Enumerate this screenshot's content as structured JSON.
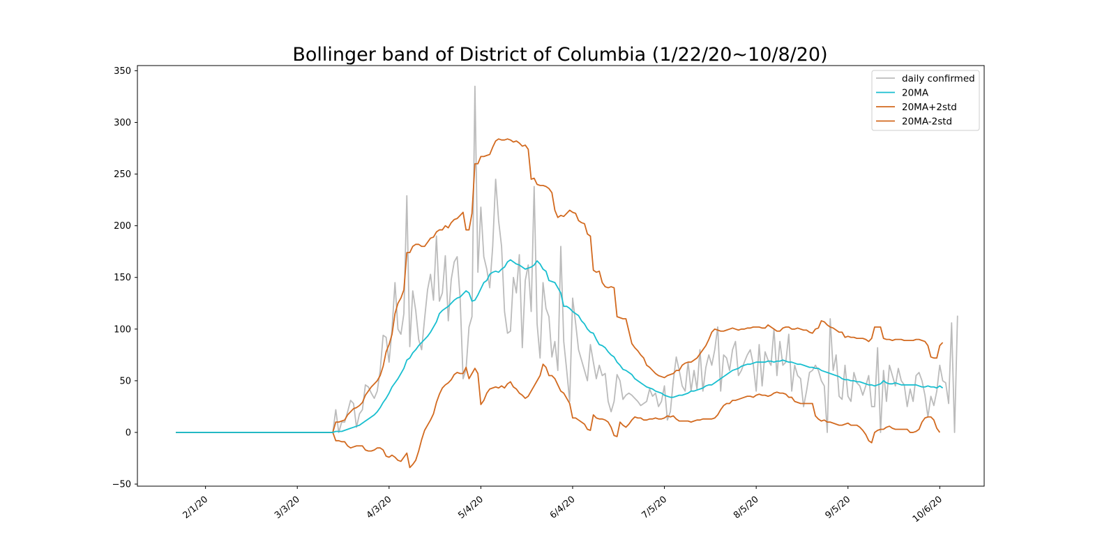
{
  "chart_data": {
    "type": "line",
    "title": "Bollinger band of District of Columbia (1/22/20~10/8/20)",
    "xlabel": "",
    "ylabel": "",
    "x_start_date": "2020-01-22",
    "xlim": [
      "2020-01-09",
      "2020-10-21"
    ],
    "ylim": [
      -52,
      355
    ],
    "x_tick_labels": [
      "2/1/20",
      "3/3/20",
      "4/3/20",
      "5/4/20",
      "6/4/20",
      "7/5/20",
      "8/5/20",
      "9/5/20",
      "10/6/20"
    ],
    "x_tick_dates": [
      "2020-02-01",
      "2020-03-03",
      "2020-04-03",
      "2020-05-04",
      "2020-06-04",
      "2020-07-05",
      "2020-08-05",
      "2020-09-05",
      "2020-10-06"
    ],
    "y_ticks": [
      -50,
      0,
      50,
      100,
      150,
      200,
      250,
      300,
      350
    ],
    "legend_position": "upper right",
    "grid": false,
    "series": [
      {
        "name": "daily confirmed",
        "color": "#bbbbbb",
        "values": [
          0,
          0,
          0,
          0,
          0,
          0,
          0,
          0,
          0,
          0,
          0,
          0,
          0,
          0,
          0,
          0,
          0,
          0,
          0,
          0,
          0,
          0,
          0,
          0,
          0,
          0,
          0,
          0,
          0,
          0,
          0,
          0,
          0,
          0,
          0,
          0,
          0,
          0,
          0,
          0,
          0,
          0,
          0,
          0,
          0,
          0,
          0,
          0,
          0,
          0,
          0,
          0,
          0,
          0,
          22,
          0,
          10,
          10,
          20,
          31,
          28,
          5,
          18,
          22,
          46,
          44,
          38,
          33,
          40,
          60,
          94,
          92,
          68,
          100,
          145,
          100,
          95,
          115,
          229,
          83,
          137,
          118,
          90,
          80,
          110,
          138,
          153,
          128,
          190,
          127,
          135,
          171,
          108,
          148,
          165,
          170,
          130,
          52,
          61,
          102,
          112,
          335,
          155,
          218,
          170,
          158,
          140,
          180,
          245,
          205,
          180,
          117,
          96,
          98,
          150,
          135,
          172,
          82,
          147,
          162,
          117,
          238,
          105,
          72,
          145,
          120,
          112,
          73,
          88,
          60,
          180,
          88,
          60,
          30,
          130,
          106,
          80,
          70,
          60,
          50,
          85,
          68,
          52,
          65,
          55,
          57,
          30,
          20,
          30,
          56,
          50,
          32,
          36,
          38,
          36,
          33,
          30,
          26,
          28,
          30,
          42,
          35,
          38,
          25,
          30,
          45,
          12,
          20,
          50,
          73,
          60,
          45,
          40,
          68,
          40,
          60,
          42,
          80,
          40,
          63,
          75,
          65,
          80,
          102,
          40,
          75,
          72,
          60,
          80,
          88,
          55,
          60,
          68,
          75,
          80,
          66,
          40,
          85,
          45,
          78,
          70,
          65,
          100,
          55,
          88,
          65,
          68,
          95,
          40,
          65,
          55,
          52,
          25,
          40,
          58,
          60,
          65,
          60,
          50,
          45,
          0,
          110,
          60,
          75,
          35,
          32,
          65,
          35,
          30,
          58,
          48,
          45,
          36,
          45,
          55,
          25,
          25,
          82,
          0,
          60,
          30,
          65,
          55,
          45,
          62,
          50,
          46,
          25,
          42,
          30,
          55,
          58,
          50,
          36,
          15,
          35,
          26,
          40,
          65,
          50,
          48,
          28,
          106,
          0,
          113
        ]
      },
      {
        "name": "20MA",
        "color": "#17becf",
        "values": [
          0,
          0,
          0,
          0,
          0,
          0,
          0,
          0,
          0,
          0,
          0,
          0,
          0,
          0,
          0,
          0,
          0,
          0,
          0,
          0,
          0,
          0,
          0,
          0,
          0,
          0,
          0,
          0,
          0,
          0,
          0,
          0,
          0,
          0,
          0,
          0,
          0,
          0,
          0,
          0,
          0,
          0,
          0,
          0,
          0,
          0,
          0,
          0,
          0,
          0,
          0,
          0,
          0,
          0,
          1,
          1,
          1,
          2,
          3,
          4,
          5,
          6,
          7,
          9,
          11,
          13,
          15,
          17,
          20,
          24,
          29,
          33,
          38,
          44,
          48,
          52,
          57,
          62,
          70,
          72,
          77,
          80,
          84,
          87,
          90,
          93,
          97,
          102,
          107,
          115,
          118,
          120,
          122,
          125,
          128,
          130,
          131,
          134,
          137,
          135,
          127,
          128,
          133,
          139,
          145,
          147,
          153,
          155,
          156,
          155,
          158,
          160,
          165,
          167,
          165,
          163,
          162,
          160,
          158,
          159,
          160,
          162,
          166,
          163,
          158,
          156,
          147,
          146,
          145,
          140,
          135,
          122,
          122,
          120,
          117,
          115,
          113,
          108,
          105,
          100,
          97,
          96,
          90,
          85,
          84,
          82,
          78,
          75,
          73,
          68,
          65,
          61,
          60,
          58,
          56,
          52,
          50,
          48,
          46,
          44,
          43,
          42,
          40,
          39,
          38,
          36,
          35,
          34,
          34,
          35,
          36,
          36,
          37,
          38,
          40,
          40,
          41,
          42,
          43,
          45,
          46,
          46,
          48,
          50,
          52,
          54,
          56,
          58,
          60,
          61,
          62,
          64,
          65,
          66,
          66,
          67,
          68,
          68,
          68,
          68,
          69,
          69,
          68,
          69,
          69,
          70,
          69,
          68,
          68,
          67,
          66,
          66,
          65,
          64,
          63,
          63,
          62,
          62,
          60,
          59,
          58,
          57,
          56,
          55,
          54,
          52,
          51,
          51,
          50,
          50,
          49,
          49,
          48,
          47,
          46,
          46,
          45,
          46,
          47,
          50,
          48,
          47,
          47,
          48,
          47,
          46,
          46,
          46,
          46,
          46,
          46,
          45,
          44,
          44,
          45,
          44,
          44,
          43,
          45,
          43
        ]
      },
      {
        "name": "20MA+2std",
        "color": "#d2691e",
        "values": [
          0,
          0,
          0,
          0,
          0,
          0,
          0,
          0,
          0,
          0,
          0,
          0,
          0,
          0,
          0,
          0,
          0,
          0,
          0,
          0,
          0,
          0,
          0,
          0,
          0,
          0,
          0,
          0,
          0,
          0,
          0,
          0,
          0,
          0,
          0,
          0,
          0,
          0,
          0,
          0,
          0,
          0,
          0,
          0,
          0,
          0,
          0,
          0,
          0,
          0,
          0,
          0,
          0,
          0,
          10,
          10,
          11,
          12,
          17,
          20,
          23,
          24,
          26,
          29,
          36,
          40,
          44,
          47,
          50,
          55,
          64,
          78,
          85,
          95,
          115,
          125,
          130,
          138,
          174,
          174,
          180,
          182,
          182,
          180,
          180,
          184,
          188,
          189,
          194,
          196,
          196,
          200,
          198,
          203,
          206,
          207,
          210,
          213,
          196,
          196,
          212,
          260,
          260,
          267,
          267,
          268,
          269,
          276,
          282,
          284,
          283,
          283,
          284,
          283,
          281,
          282,
          280,
          277,
          278,
          274,
          245,
          246,
          240,
          239,
          239,
          238,
          236,
          232,
          215,
          208,
          210,
          209,
          212,
          215,
          213,
          212,
          205,
          203,
          202,
          192,
          190,
          157,
          155,
          156,
          145,
          141,
          140,
          141,
          140,
          112,
          111,
          110,
          110,
          98,
          86,
          82,
          79,
          75,
          72,
          65,
          63,
          60,
          57,
          55,
          54,
          53,
          55,
          56,
          57,
          60,
          60,
          65,
          67,
          68,
          68,
          70,
          72,
          76,
          80,
          84,
          90,
          97,
          100,
          99,
          98,
          98,
          99,
          100,
          101,
          100,
          99,
          100,
          100,
          101,
          101,
          102,
          102,
          102,
          101,
          101,
          104,
          102,
          100,
          98,
          98,
          101,
          102,
          102,
          100,
          100,
          101,
          100,
          99,
          99,
          97,
          96,
          100,
          101,
          108,
          107,
          104,
          102,
          101,
          99,
          97,
          97,
          92,
          93,
          92,
          92,
          91,
          91,
          91,
          90,
          88,
          91,
          102,
          102,
          102,
          91,
          90,
          90,
          89,
          90,
          90,
          90,
          89,
          89,
          89,
          89,
          90,
          90,
          89,
          88,
          84,
          73,
          72,
          72,
          84,
          87
        ]
      },
      {
        "name": "20MA-2std",
        "color": "#d2691e",
        "values": [
          0,
          0,
          0,
          0,
          0,
          0,
          0,
          0,
          0,
          0,
          0,
          0,
          0,
          0,
          0,
          0,
          0,
          0,
          0,
          0,
          0,
          0,
          0,
          0,
          0,
          0,
          0,
          0,
          0,
          0,
          0,
          0,
          0,
          0,
          0,
          0,
          0,
          0,
          0,
          0,
          0,
          0,
          0,
          0,
          0,
          0,
          0,
          0,
          0,
          0,
          0,
          0,
          0,
          0,
          -8,
          -8,
          -9,
          -9,
          -13,
          -15,
          -14,
          -13,
          -13,
          -13,
          -17,
          -18,
          -18,
          -17,
          -15,
          -15,
          -17,
          -23,
          -24,
          -22,
          -24,
          -27,
          -28,
          -24,
          -20,
          -34,
          -31,
          -27,
          -18,
          -7,
          2,
          7,
          12,
          18,
          29,
          37,
          43,
          46,
          48,
          51,
          56,
          58,
          57,
          57,
          63,
          52,
          57,
          62,
          57,
          27,
          31,
          38,
          42,
          43,
          44,
          43,
          45,
          43,
          47,
          49,
          44,
          42,
          38,
          36,
          33,
          35,
          40,
          45,
          50,
          55,
          66,
          63,
          55,
          55,
          52,
          46,
          40,
          38,
          33,
          28,
          14,
          14,
          12,
          10,
          8,
          3,
          2,
          17,
          14,
          13,
          13,
          12,
          10,
          5,
          -3,
          -4,
          10,
          7,
          5,
          8,
          12,
          15,
          14,
          14,
          12,
          12,
          13,
          13,
          14,
          13,
          13,
          14,
          16,
          15,
          16,
          13,
          11,
          11,
          11,
          11,
          10,
          11,
          12,
          12,
          13,
          13,
          13,
          13,
          14,
          17,
          22,
          26,
          28,
          28,
          31,
          31,
          32,
          33,
          34,
          35,
          35,
          34,
          36,
          37,
          36,
          36,
          35,
          36,
          38,
          39,
          38,
          38,
          37,
          34,
          34,
          30,
          29,
          28,
          28,
          28,
          28,
          28,
          16,
          13,
          11,
          12,
          10,
          10,
          9,
          8,
          7,
          7,
          8,
          9,
          7,
          7,
          7,
          5,
          2,
          -2,
          -8,
          -10,
          0,
          2,
          3,
          3,
          5,
          6,
          4,
          3,
          3,
          3,
          3,
          3,
          0,
          0,
          1,
          3,
          10,
          14,
          15,
          15,
          12,
          4,
          0
        ]
      }
    ]
  }
}
